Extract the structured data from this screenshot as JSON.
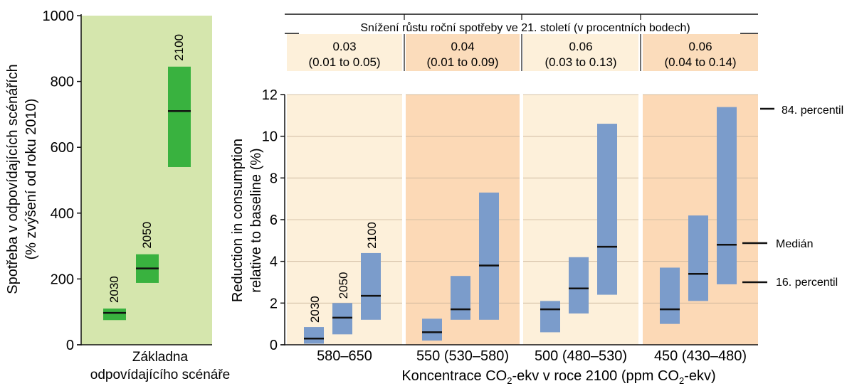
{
  "colors": {
    "left_panel_bg": "#d5e6ad",
    "green_bar": "#39b23f",
    "blue_bar": "#7b9ccb",
    "panel_light": "#fdf0da",
    "panel_dark": "#fcd9b6",
    "header_light": "#fdf0da",
    "header_dark": "#fbdcbb",
    "median_line": "#111111"
  },
  "chart_data": [
    {
      "type": "floating-bar",
      "ylabel_line1": "Spotřeba v odpovídajících scénářích",
      "ylabel_line2": "(% zvýšení od roku 2010)",
      "ylim": [
        0,
        1000
      ],
      "yticks": [
        "0",
        "200",
        "400",
        "600",
        "800",
        "1000"
      ],
      "grid": false,
      "xlabel_line1": "Základna",
      "xlabel_line2": "odpovídajícího scénáře",
      "bars": [
        {
          "label": "2030",
          "low": 75,
          "high": 110,
          "median": 97
        },
        {
          "label": "2050",
          "low": 188,
          "high": 275,
          "median": 232
        },
        {
          "label": "2100",
          "low": 540,
          "high": 845,
          "median": 710
        }
      ]
    },
    {
      "type": "floating-bar",
      "header_title": "Snížení růstu roční spotřeby ve 21. století (v procentních bodech)",
      "ylabel_line1": "Reduction in consumption",
      "ylabel_line2": "relative to baseline (%)",
      "ylim": [
        0,
        12
      ],
      "yticks": [
        "0",
        "2",
        "4",
        "6",
        "8",
        "10",
        "12"
      ],
      "grid": true,
      "xlabel_main": "Koncentrace CO",
      "xlabel_sub": "2",
      "xlabel_mid": "-ekv v roce 2100 (ppm CO",
      "xlabel_sub2": "2",
      "xlabel_end": "-ekv)",
      "bar_year_labels": [
        "2030",
        "2050",
        "2100"
      ],
      "groups": [
        {
          "category": "580–650",
          "rate": "0.03",
          "rate_range": "(0.01 to 0.05)",
          "shade": "light",
          "bars": [
            {
              "year": "2030",
              "low": 0.05,
              "high": 0.85,
              "median": 0.3
            },
            {
              "year": "2050",
              "low": 0.5,
              "high": 2.0,
              "median": 1.3
            },
            {
              "year": "2100",
              "low": 1.2,
              "high": 4.4,
              "median": 2.35
            }
          ]
        },
        {
          "category": "550 (530–580)",
          "rate": "0.04",
          "rate_range": "(0.01 to 0.09)",
          "shade": "dark",
          "bars": [
            {
              "year": "2030",
              "low": 0.2,
              "high": 1.25,
              "median": 0.6
            },
            {
              "year": "2050",
              "low": 1.2,
              "high": 3.3,
              "median": 1.7
            },
            {
              "year": "2100",
              "low": 1.2,
              "high": 7.3,
              "median": 3.8
            }
          ]
        },
        {
          "category": "500 (480–530)",
          "rate": "0.06",
          "rate_range": "(0.03 to 0.13)",
          "shade": "light",
          "bars": [
            {
              "year": "2030",
              "low": 0.6,
              "high": 2.1,
              "median": 1.7
            },
            {
              "year": "2050",
              "low": 1.5,
              "high": 4.2,
              "median": 2.7
            },
            {
              "year": "2100",
              "low": 2.4,
              "high": 10.6,
              "median": 4.7
            }
          ]
        },
        {
          "category": "450 (430–480)",
          "rate": "0.06",
          "rate_range": "(0.04 to 0.14)",
          "shade": "dark",
          "bars": [
            {
              "year": "2030",
              "low": 1.0,
              "high": 3.7,
              "median": 1.7
            },
            {
              "year": "2050",
              "low": 2.1,
              "high": 6.2,
              "median": 3.4
            },
            {
              "year": "2100",
              "low": 2.9,
              "high": 11.4,
              "median": 4.8
            }
          ]
        }
      ],
      "annotations": {
        "upper": "84. percentil",
        "median": "Medián",
        "lower": "16. percentil"
      }
    }
  ]
}
